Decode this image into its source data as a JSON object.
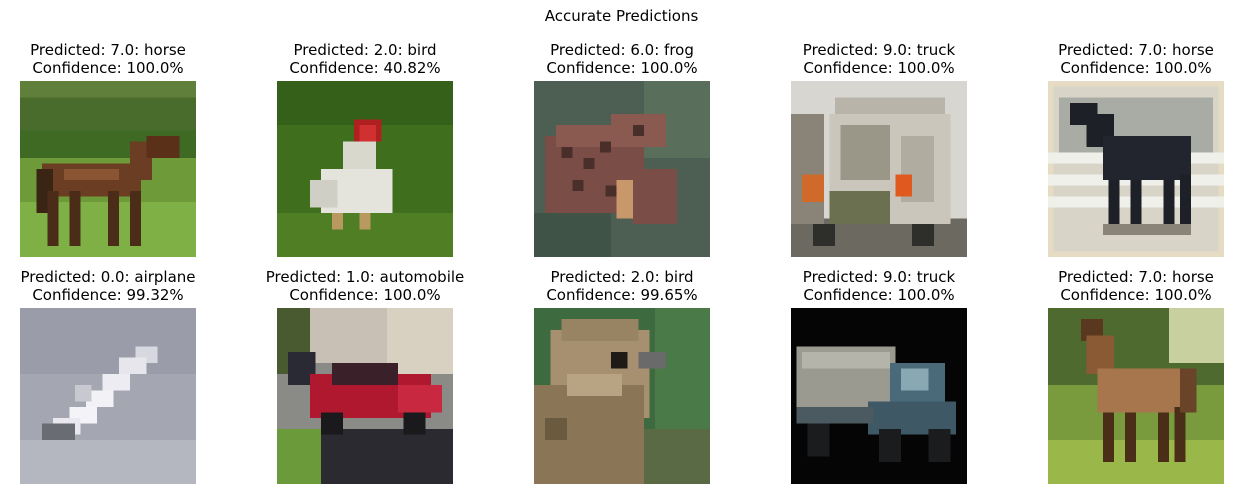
{
  "figure": {
    "title": "Accurate Predictions",
    "panels": [
      {
        "line1": "Predicted: 7.0: horse",
        "line2": "Confidence: 100.0%",
        "subject": "brown horse standing on grass"
      },
      {
        "line1": "Predicted: 2.0: bird",
        "line2": "Confidence: 40.82%",
        "subject": "white rooster in grass"
      },
      {
        "line1": "Predicted: 6.0: frog",
        "line2": "Confidence: 100.0%",
        "subject": "spotted brown frog"
      },
      {
        "line1": "Predicted: 9.0: truck",
        "line2": "Confidence: 100.0%",
        "subject": "white truck rear view"
      },
      {
        "line1": "Predicted: 7.0: horse",
        "line2": "Confidence: 100.0%",
        "subject": "black horse by white fence"
      },
      {
        "line1": "Predicted: 0.0: airplane",
        "line2": "Confidence: 99.32%",
        "subject": "white airplane in grey sky"
      },
      {
        "line1": "Predicted: 1.0: automobile",
        "line2": "Confidence: 100.0%",
        "subject": "red sports car on driveway"
      },
      {
        "line1": "Predicted: 2.0: bird",
        "line2": "Confidence: 99.65%",
        "subject": "close-up of a bird head"
      },
      {
        "line1": "Predicted: 9.0: truck",
        "line2": "Confidence: 100.0%",
        "subject": "blue-grey truck on black background"
      },
      {
        "line1": "Predicted: 7.0: horse",
        "line2": "Confidence: 100.0%",
        "subject": "brown horse on green field"
      }
    ]
  }
}
